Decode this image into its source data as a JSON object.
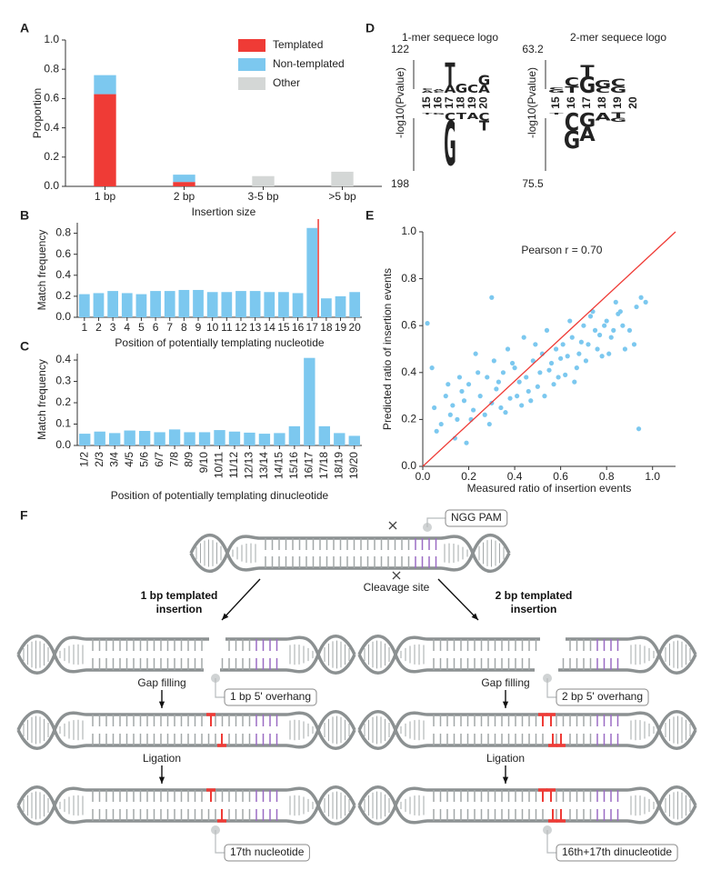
{
  "panel_labels": [
    "A",
    "B",
    "C",
    "D",
    "E",
    "F"
  ],
  "chart_data": [
    {
      "type": "bar",
      "xlabel": "Insertion size",
      "ylabel": "Proportion",
      "categories": [
        "1 bp",
        "2 bp",
        "3-5 bp",
        ">5 bp"
      ],
      "series": [
        {
          "name": "Templated",
          "color": "#ef3b36",
          "values": [
            0.63,
            0.03,
            0,
            0
          ]
        },
        {
          "name": "Non-templated",
          "color": "#7cc8ef",
          "values": [
            0.13,
            0.05,
            0,
            0
          ]
        },
        {
          "name": "Other",
          "color": "#d4d7d6",
          "values": [
            0,
            0,
            0.07,
            0.1
          ]
        }
      ],
      "ylim": [
        0,
        1
      ],
      "yticks": [
        {
          "value": 0,
          "label": "0.0"
        },
        0.2,
        0.4,
        0.6,
        0.8,
        {
          "value": 1,
          "label": "1.0"
        }
      ],
      "legend": "upper right"
    },
    {
      "type": "bar",
      "xlabel": "Position of potentially templating nucleotide",
      "ylabel": "Match frequency",
      "categories": [
        "1",
        "2",
        "3",
        "4",
        "5",
        "6",
        "7",
        "8",
        "9",
        "10",
        "11",
        "12",
        "13",
        "14",
        "15",
        "16",
        "17",
        "18",
        "19",
        "20"
      ],
      "values": [
        0.22,
        0.23,
        0.25,
        0.23,
        0.22,
        0.25,
        0.25,
        0.26,
        0.26,
        0.24,
        0.24,
        0.25,
        0.25,
        0.24,
        0.24,
        0.23,
        0.85,
        0.18,
        0.2,
        0.24
      ],
      "color": "#7cc8ef",
      "ylim": [
        0,
        0.9
      ],
      "yticks": [
        {
          "value": 0,
          "label": "0.0"
        },
        0.2,
        0.4,
        0.6,
        0.8
      ],
      "marker_after": "17",
      "marker_color": "#ef3b36"
    },
    {
      "type": "bar",
      "xlabel": "Position of potentially templating dinucleotide",
      "ylabel": "Match frequency",
      "categories": [
        "1/2",
        "2/3",
        "3/4",
        "4/5",
        "5/6",
        "6/7",
        "7/8",
        "8/9",
        "9/10",
        "10/11",
        "11/12",
        "12/13",
        "13/14",
        "14/15",
        "15/16",
        "16/17",
        "17/18",
        "18/19",
        "19/20"
      ],
      "values": [
        0.055,
        0.065,
        0.058,
        0.07,
        0.068,
        0.062,
        0.075,
        0.062,
        0.062,
        0.072,
        0.065,
        0.06,
        0.055,
        0.058,
        0.09,
        0.41,
        0.09,
        0.058,
        0.045
      ],
      "color": "#7cc8ef",
      "ylim": [
        0,
        0.43
      ],
      "yticks": [
        {
          "value": 0,
          "label": "0.0"
        },
        0.1,
        0.2,
        0.3,
        0.4
      ],
      "rotate_labels": true
    },
    {
      "type": "logo",
      "title": "1-mer sequece logo",
      "ylabel": "-log10(Pvalue)",
      "top_value": 122,
      "bottom_value": 198,
      "positions": [
        15,
        16,
        17,
        18,
        19,
        20
      ],
      "position_colors": [
        "#222222",
        "#e53935",
        "#e53935",
        "#e53935",
        "#e53935",
        "#e53935"
      ],
      "letter_colors": {
        "A": "#4caf50",
        "C": "#2b7bd0",
        "G": "#f5a623",
        "T": "#e53935"
      },
      "up": [
        [
          {
            "letter": "A",
            "height": 0.04
          },
          {
            "letter": "C",
            "height": 0.03
          }
        ],
        [
          {
            "letter": "C",
            "height": 0.03
          },
          {
            "letter": "A",
            "height": 0.03
          }
        ],
        [
          {
            "letter": "A",
            "height": 0.12
          },
          {
            "letter": "T",
            "height": 0.35
          }
        ],
        [
          {
            "letter": "G",
            "height": 0.14
          }
        ],
        [
          {
            "letter": "C",
            "height": 0.13
          }
        ],
        [
          {
            "letter": "A",
            "height": 0.12
          },
          {
            "letter": "G",
            "height": 0.16
          }
        ]
      ],
      "down": [
        [
          {
            "letter": "T",
            "height": 0.03
          }
        ],
        [
          {
            "letter": "G",
            "height": 0.03
          }
        ],
        [
          {
            "letter": "C",
            "height": 0.12
          },
          {
            "letter": "G",
            "height": 0.7
          }
        ],
        [
          {
            "letter": "T",
            "height": 0.1
          }
        ],
        [
          {
            "letter": "A",
            "height": 0.1
          }
        ],
        [
          {
            "letter": "C",
            "height": 0.12
          },
          {
            "letter": "T",
            "height": 0.16
          }
        ]
      ]
    },
    {
      "type": "logo",
      "title": "2-mer sequece logo",
      "ylabel": "-log10(Pvalue)",
      "top_value": 63.2,
      "bottom_value": 75.5,
      "positions": [
        15,
        16,
        17,
        18,
        19,
        20
      ],
      "position_colors": [
        "#e53935",
        "#e53935",
        "#e53935",
        "#e53935",
        "#e53935",
        "#222222"
      ],
      "letter_colors": {
        "A": "#4caf50",
        "C": "#2b7bd0",
        "G": "#f5a623",
        "T": "#e53935"
      },
      "up": [
        [
          {
            "letter": "G",
            "height": 0.05
          },
          {
            "letter": "C",
            "height": 0.04
          }
        ],
        [
          {
            "letter": "T",
            "height": 0.1
          },
          {
            "letter": "C",
            "height": 0.14
          }
        ],
        [
          {
            "letter": "G",
            "height": 0.26
          },
          {
            "letter": "T",
            "height": 0.18
          }
        ],
        [
          {
            "letter": "C",
            "height": 0.08
          },
          {
            "letter": "G",
            "height": 0.12
          }
        ],
        [
          {
            "letter": "G",
            "height": 0.1
          },
          {
            "letter": "C",
            "height": 0.12
          }
        ],
        []
      ],
      "down": [
        [
          {
            "letter": "T",
            "height": 0.03
          }
        ],
        [
          {
            "letter": "C",
            "height": 0.28
          },
          {
            "letter": "G",
            "height": 0.28
          }
        ],
        [
          {
            "letter": "G",
            "height": 0.22
          },
          {
            "letter": "A",
            "height": 0.22
          }
        ],
        [
          {
            "letter": "A",
            "height": 0.12
          }
        ],
        [
          {
            "letter": "T",
            "height": 0.08
          },
          {
            "letter": "G",
            "height": 0.06
          }
        ],
        []
      ]
    },
    {
      "type": "scatter",
      "xlabel": "Measured ratio of insertion events",
      "ylabel": "Predicted ratio of insertion events",
      "annotation": "Pearson r = 0.70",
      "color": "#7cc8ef",
      "diagonal": true,
      "diagonal_color": "#ef3b36",
      "x": [
        0.05,
        0.08,
        0.1,
        0.12,
        0.15,
        0.18,
        0.2,
        0.22,
        0.25,
        0.28,
        0.3,
        0.32,
        0.35,
        0.38,
        0.4,
        0.42,
        0.45,
        0.48,
        0.5,
        0.52,
        0.55,
        0.58,
        0.6,
        0.62,
        0.65,
        0.68,
        0.7,
        0.72,
        0.75,
        0.78,
        0.8,
        0.82,
        0.85,
        0.88,
        0.9,
        0.93,
        0.95,
        0.97,
        0.06,
        0.11,
        0.14,
        0.17,
        0.21,
        0.24,
        0.27,
        0.31,
        0.34,
        0.37,
        0.41,
        0.44,
        0.47,
        0.51,
        0.54,
        0.57,
        0.61,
        0.64,
        0.67,
        0.71,
        0.74,
        0.77,
        0.81,
        0.84,
        0.87,
        0.92,
        0.04,
        0.13,
        0.19,
        0.23,
        0.29,
        0.33,
        0.36,
        0.39,
        0.43,
        0.46,
        0.49,
        0.53,
        0.56,
        0.59,
        0.63,
        0.66,
        0.69,
        0.73,
        0.76,
        0.79,
        0.83,
        0.86,
        0.3,
        0.94,
        0.02,
        0.16
      ],
      "y": [
        0.25,
        0.18,
        0.3,
        0.22,
        0.2,
        0.28,
        0.35,
        0.24,
        0.3,
        0.38,
        0.27,
        0.33,
        0.4,
        0.29,
        0.42,
        0.36,
        0.38,
        0.45,
        0.34,
        0.48,
        0.41,
        0.5,
        0.46,
        0.39,
        0.55,
        0.48,
        0.6,
        0.52,
        0.58,
        0.47,
        0.62,
        0.55,
        0.65,
        0.5,
        0.58,
        0.68,
        0.72,
        0.7,
        0.15,
        0.35,
        0.12,
        0.32,
        0.2,
        0.4,
        0.22,
        0.45,
        0.25,
        0.5,
        0.3,
        0.55,
        0.28,
        0.4,
        0.58,
        0.35,
        0.52,
        0.62,
        0.42,
        0.45,
        0.66,
        0.56,
        0.48,
        0.7,
        0.6,
        0.52,
        0.42,
        0.26,
        0.1,
        0.48,
        0.18,
        0.36,
        0.23,
        0.44,
        0.26,
        0.32,
        0.52,
        0.3,
        0.44,
        0.38,
        0.47,
        0.36,
        0.53,
        0.64,
        0.5,
        0.6,
        0.58,
        0.66,
        0.72,
        0.16,
        0.61,
        0.38
      ],
      "xlim": [
        0,
        1.1
      ],
      "ylim": [
        0,
        1
      ],
      "xticks": [
        {
          "value": 0,
          "label": "0.0"
        },
        0.2,
        0.4,
        0.6,
        0.8,
        {
          "value": 1,
          "label": "1.0"
        }
      ],
      "yticks": [
        {
          "value": 0,
          "label": "0.0"
        },
        0.2,
        0.4,
        0.6,
        0.8,
        {
          "value": 1,
          "label": "1.0"
        }
      ]
    }
  ],
  "diagram": {
    "pam": "NGG PAM",
    "cleavage": "Cleavage site",
    "left": {
      "title": "1 bp templated insertion",
      "steps": [
        "Gap filling",
        "Ligation"
      ],
      "callouts": [
        "1 bp 5' overhang",
        "17th nucleotide"
      ]
    },
    "right": {
      "title": "2 bp templated insertion",
      "steps": [
        "Gap filling",
        "Ligation"
      ],
      "callouts": [
        "2 bp 5' overhang",
        "16th+17th dinucleotide"
      ]
    }
  }
}
